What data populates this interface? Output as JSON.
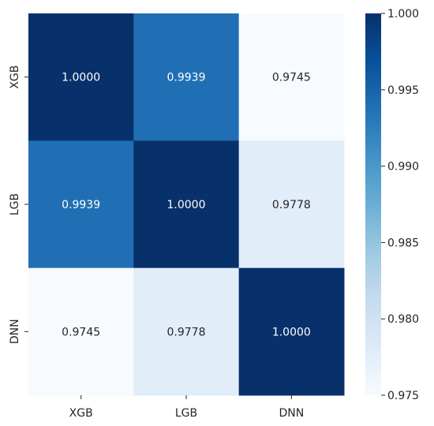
{
  "chart_data": {
    "type": "heatmap",
    "title": "",
    "xlabel": "",
    "ylabel": "",
    "x_categories": [
      "XGB",
      "LGB",
      "DNN"
    ],
    "y_categories": [
      "XGB",
      "LGB",
      "DNN"
    ],
    "values": [
      [
        1.0,
        0.9939,
        0.9745
      ],
      [
        0.9939,
        1.0,
        0.9778
      ],
      [
        0.9745,
        0.9778,
        1.0
      ]
    ],
    "cell_labels": [
      [
        "1.0000",
        "0.9939",
        "0.9745"
      ],
      [
        "0.9939",
        "1.0000",
        "0.9778"
      ],
      [
        "0.9745",
        "0.9778",
        "1.0000"
      ]
    ],
    "colormap": "Blues",
    "colorbar": {
      "min": 0.975,
      "max": 1.0,
      "ticks": [
        1.0,
        0.995,
        0.99,
        0.985,
        0.98,
        0.975
      ],
      "tick_labels": [
        "1.000",
        "0.995",
        "0.990",
        "0.985",
        "0.980",
        "0.975"
      ]
    },
    "grid": false
  }
}
